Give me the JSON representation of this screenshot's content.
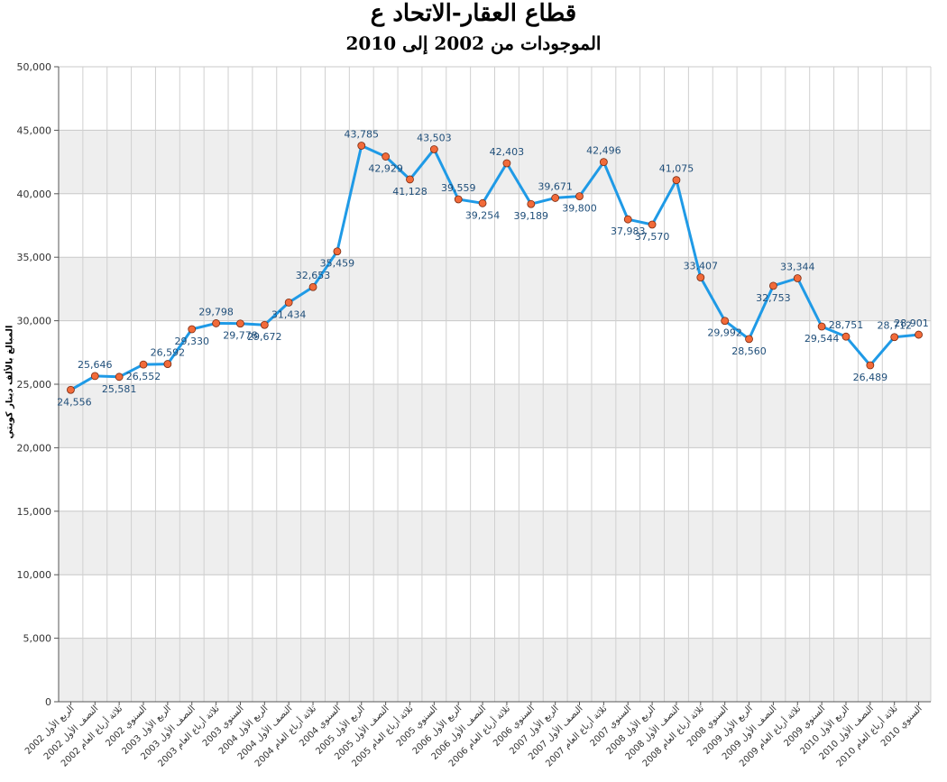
{
  "chart_data": {
    "type": "line",
    "title": "قطاع العقار-الاتحاد ع",
    "subtitle": "الموجودات من 2002 إلى 2010",
    "ylabel": "المبالغ بالألف دينار كويتي",
    "ylim": [
      0,
      50000
    ],
    "yticks": [
      "0",
      "5,000",
      "10,000",
      "15,000",
      "20,000",
      "25,000",
      "30,000",
      "35,000",
      "40,000",
      "45,000",
      "50,000"
    ],
    "grid": true,
    "line_color": "#1f9ae6",
    "marker_color": "#f26b3a",
    "band_color": "#eeeeee",
    "categories": [
      "الربع الأول 2002",
      "النصف الأول 2002",
      "ثلاثة أرباع العام 2002",
      "السنوي 2002",
      "الربع الأول 2003",
      "النصف الأول 2003",
      "ثلاثة أرباع العام 2003",
      "السنوي 2003",
      "الربع الأول 2004",
      "النصف الأول 2004",
      "ثلاثة أرباع العام 2004",
      "السنوي 2004",
      "الربع الأول 2005",
      "النصف الأول 2005",
      "ثلاثة أرباع العام 2005",
      "السنوي 2005",
      "الربع الأول 2006",
      "النصف الأول 2006",
      "ثلاثة أرباع العام 2006",
      "السنوي 2006",
      "الربع الأول 2007",
      "النصف الأول 2007",
      "ثلاثة أرباع العام 2007",
      "السنوي 2007",
      "الربع الأول 2008",
      "النصف الأول 2008",
      "ثلاثة أرباع العام 2008",
      "السنوي 2008",
      "الربع الأول 2009",
      "النصف الأول 2009",
      "ثلاثة أرباع العام 2009",
      "السنوي 2009",
      "الربع الأول 2010",
      "النصف الأول 2010",
      "ثلاثة أرباع العام 2010",
      "السنوي 2010"
    ],
    "values": [
      24556,
      25646,
      25581,
      26552,
      26592,
      29330,
      29798,
      29778,
      29672,
      31434,
      32653,
      35459,
      43785,
      42929,
      41128,
      43503,
      39559,
      39254,
      42403,
      39189,
      39671,
      39800,
      42496,
      37983,
      37570,
      41075,
      33407,
      29992,
      28560,
      32753,
      33344,
      29544,
      28751,
      26489,
      28712,
      28901
    ],
    "labels": [
      "24,556",
      "25,646",
      "25,581",
      "26,552",
      "26,592",
      "29,330",
      "29,798",
      "29,778",
      "29,672",
      "31,434",
      "32,653",
      "35,459",
      "43,785",
      "42,929",
      "41,128",
      "43,503",
      "39,559",
      "39,254",
      "42,403",
      "39,189",
      "39,671",
      "39,800",
      "42,496",
      "37,983",
      "37,570",
      "41,075",
      "33,407",
      "29,992",
      "28,560",
      "32,753",
      "33,344",
      "29,544",
      "28,751",
      "26,489",
      "28,712",
      "28,901"
    ]
  }
}
